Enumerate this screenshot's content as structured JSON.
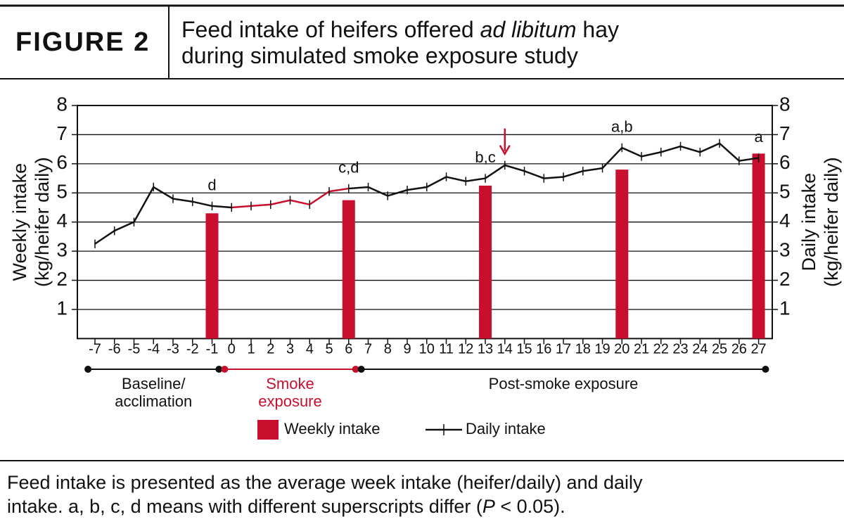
{
  "header": {
    "figure_label": "FIGURE 2",
    "title_lines": [
      [
        "Feed intake of heifers offered ",
        "ad libitum",
        " hay"
      ],
      [
        "during simulated smoke exposure study"
      ]
    ]
  },
  "chart_data": {
    "type": "bar-line",
    "y_label": [
      "Weekly intake",
      "(kg/heifer daily)"
    ],
    "y2_label": [
      "Daily intake",
      "(kg/heifer daily)"
    ],
    "ylim": [
      0,
      8
    ],
    "yticks": [
      1,
      2,
      3,
      4,
      5,
      6,
      7,
      8
    ],
    "y2lim": [
      0,
      8
    ],
    "y2ticks": [
      1,
      2,
      3,
      4,
      5,
      6,
      7,
      8
    ],
    "xlim": [
      -7.9,
      27.7
    ],
    "grid": true,
    "xticks": [
      -7,
      -6,
      -5,
      -4,
      -3,
      -2,
      -1,
      0,
      1,
      2,
      3,
      4,
      5,
      6,
      7,
      8,
      9,
      10,
      11,
      12,
      13,
      14,
      15,
      16,
      17,
      18,
      19,
      20,
      21,
      22,
      23,
      24,
      25,
      26,
      27
    ],
    "series": [
      {
        "name": "Weekly intake",
        "type": "bar",
        "color": "#c8102e",
        "x": [
          -1,
          6,
          13,
          20,
          27
        ],
        "values": [
          4.3,
          4.75,
          5.25,
          5.8,
          6.35
        ],
        "letters": [
          "d",
          "c,d",
          "b,c",
          "a,b",
          "a"
        ]
      },
      {
        "name": "Daily intake",
        "type": "line",
        "axis": "y2",
        "color": "#111111",
        "highlight": {
          "from": 0,
          "to": 6,
          "color": "#c8102e"
        },
        "x": [
          -7,
          -6,
          -5,
          -4,
          -3,
          -2,
          -1,
          0,
          1,
          2,
          3,
          4,
          5,
          6,
          7,
          8,
          9,
          10,
          11,
          12,
          13,
          14,
          15,
          16,
          17,
          18,
          19,
          20,
          21,
          22,
          23,
          24,
          25,
          26,
          27
        ],
        "values": [
          3.25,
          3.7,
          4.0,
          5.2,
          4.8,
          4.7,
          4.55,
          4.5,
          4.55,
          4.6,
          4.75,
          4.6,
          5.05,
          5.15,
          5.2,
          4.9,
          5.1,
          5.2,
          5.55,
          5.4,
          5.5,
          5.95,
          5.75,
          5.5,
          5.55,
          5.75,
          5.85,
          6.55,
          6.25,
          6.4,
          6.6,
          6.4,
          6.7,
          6.1,
          6.2
        ],
        "errors": [
          0.15,
          0.15,
          0.15,
          0.15,
          0.15,
          0.15,
          0.15,
          0.15,
          0.15,
          0.15,
          0.15,
          0.15,
          0.15,
          0.15,
          0.15,
          0.15,
          0.15,
          0.15,
          0.15,
          0.15,
          0.15,
          0.15,
          0.15,
          0.15,
          0.15,
          0.15,
          0.15,
          0.15,
          0.15,
          0.15,
          0.15,
          0.15,
          0.15,
          0.15,
          0.15
        ]
      }
    ],
    "arrow": {
      "x": 14,
      "color": "#c8102e"
    },
    "phases": [
      {
        "label": [
          "Baseline/",
          "acclimation"
        ],
        "from": -7,
        "to": -1,
        "color": "#111111"
      },
      {
        "label": [
          "Smoke",
          "exposure"
        ],
        "from": 0,
        "to": 6,
        "color": "#c8102e"
      },
      {
        "label": [
          "Post-smoke exposure"
        ],
        "from": 7,
        "to": 27,
        "color": "#111111"
      }
    ]
  },
  "caption": [
    [
      "Feed intake is presented as the average week intake (heifer/daily) and daily"
    ],
    [
      "intake. a, b, c, d means with different superscripts differ (",
      "P",
      " < 0.05)."
    ]
  ]
}
